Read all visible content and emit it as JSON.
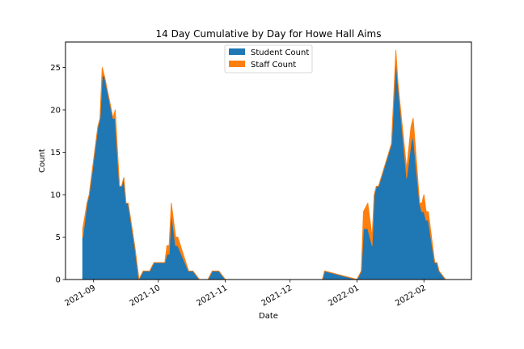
{
  "chart_data": {
    "type": "area",
    "stacked": true,
    "title": "14 Day Cumulative by Day for Howe Hall Aims",
    "xlabel": "Date",
    "ylabel": "Count",
    "x_axis": {
      "type": "date",
      "range": [
        "2021-08-19",
        "2022-02-23"
      ],
      "ticks": [
        {
          "label": "2021-09",
          "date": "2021-09-01"
        },
        {
          "label": "2021-10",
          "date": "2021-10-01"
        },
        {
          "label": "2021-11",
          "date": "2021-11-01"
        },
        {
          "label": "2021-12",
          "date": "2021-12-01"
        },
        {
          "label": "2022-01",
          "date": "2022-01-01"
        },
        {
          "label": "2022-02",
          "date": "2022-02-01"
        }
      ]
    },
    "y_axis": {
      "range": [
        0,
        28
      ],
      "ticks": [
        0,
        5,
        10,
        15,
        20,
        25
      ]
    },
    "grid": false,
    "legend": {
      "position": "upper center"
    },
    "series": [
      {
        "name": "Student Count",
        "color": "#1f77b4",
        "points": [
          [
            "2021-08-27",
            5
          ],
          [
            "2021-08-29",
            9
          ],
          [
            "2021-08-30",
            10
          ],
          [
            "2021-09-01",
            14
          ],
          [
            "2021-09-03",
            18
          ],
          [
            "2021-09-04",
            19
          ],
          [
            "2021-09-05",
            24
          ],
          [
            "2021-09-06",
            24
          ],
          [
            "2021-09-10",
            19
          ],
          [
            "2021-09-11",
            19
          ],
          [
            "2021-09-13",
            11
          ],
          [
            "2021-09-14",
            11
          ],
          [
            "2021-09-15",
            12
          ],
          [
            "2021-09-16",
            9
          ],
          [
            "2021-09-17",
            9
          ],
          [
            "2021-09-20",
            4
          ],
          [
            "2021-09-22",
            0
          ],
          [
            "2021-09-24",
            1
          ],
          [
            "2021-09-27",
            1
          ],
          [
            "2021-09-29",
            2
          ],
          [
            "2021-10-04",
            2
          ],
          [
            "2021-10-05",
            3
          ],
          [
            "2021-10-06",
            3
          ],
          [
            "2021-10-07",
            8
          ],
          [
            "2021-10-09",
            4
          ],
          [
            "2021-10-10",
            4
          ],
          [
            "2021-10-15",
            1
          ],
          [
            "2021-10-17",
            1
          ],
          [
            "2021-10-20",
            0
          ],
          [
            "2021-10-24",
            0
          ],
          [
            "2021-10-26",
            1
          ],
          [
            "2021-10-29",
            1
          ],
          [
            "2021-11-01",
            0
          ],
          [
            "2021-12-16",
            0
          ],
          [
            "2021-12-17",
            1
          ],
          [
            "2022-01-01",
            0
          ],
          [
            "2022-01-03",
            1
          ],
          [
            "2022-01-04",
            6
          ],
          [
            "2022-01-06",
            6
          ],
          [
            "2022-01-08",
            4
          ],
          [
            "2022-01-09",
            10
          ],
          [
            "2022-01-10",
            11
          ],
          [
            "2022-01-11",
            11
          ],
          [
            "2022-01-17",
            16
          ],
          [
            "2022-01-19",
            26
          ],
          [
            "2022-01-20",
            23
          ],
          [
            "2022-01-24",
            12
          ],
          [
            "2022-01-26",
            16
          ],
          [
            "2022-01-27",
            17
          ],
          [
            "2022-01-30",
            9
          ],
          [
            "2022-01-31",
            8
          ],
          [
            "2022-02-01",
            8
          ],
          [
            "2022-02-02",
            7
          ],
          [
            "2022-02-03",
            7
          ],
          [
            "2022-02-06",
            2
          ],
          [
            "2022-02-07",
            2
          ],
          [
            "2022-02-08",
            1
          ],
          [
            "2022-02-11",
            0
          ],
          [
            "2022-02-16",
            0
          ]
        ]
      },
      {
        "name": "Staff Count",
        "color": "#ff7f0e",
        "points": [
          [
            "2021-08-27",
            1
          ],
          [
            "2021-08-29",
            0
          ],
          [
            "2021-08-30",
            0
          ],
          [
            "2021-09-01",
            0
          ],
          [
            "2021-09-03",
            0
          ],
          [
            "2021-09-04",
            0
          ],
          [
            "2021-09-05",
            1
          ],
          [
            "2021-09-06",
            0
          ],
          [
            "2021-09-10",
            0
          ],
          [
            "2021-09-11",
            1
          ],
          [
            "2021-09-13",
            0
          ],
          [
            "2021-09-14",
            0
          ],
          [
            "2021-09-15",
            0
          ],
          [
            "2021-09-16",
            0
          ],
          [
            "2021-09-17",
            0
          ],
          [
            "2021-09-20",
            0
          ],
          [
            "2021-09-22",
            0
          ],
          [
            "2021-09-24",
            0
          ],
          [
            "2021-09-27",
            0
          ],
          [
            "2021-09-29",
            0
          ],
          [
            "2021-10-04",
            0
          ],
          [
            "2021-10-05",
            1
          ],
          [
            "2021-10-06",
            1
          ],
          [
            "2021-10-07",
            1
          ],
          [
            "2021-10-09",
            1
          ],
          [
            "2021-10-10",
            1
          ],
          [
            "2021-10-15",
            0
          ],
          [
            "2021-10-17",
            0
          ],
          [
            "2021-10-20",
            0
          ],
          [
            "2021-10-24",
            0
          ],
          [
            "2021-10-26",
            0
          ],
          [
            "2021-10-29",
            0
          ],
          [
            "2021-11-01",
            0
          ],
          [
            "2021-12-16",
            0
          ],
          [
            "2021-12-17",
            0
          ],
          [
            "2022-01-01",
            0
          ],
          [
            "2022-01-03",
            0
          ],
          [
            "2022-01-04",
            2
          ],
          [
            "2022-01-06",
            3
          ],
          [
            "2022-01-08",
            1
          ],
          [
            "2022-01-09",
            0
          ],
          [
            "2022-01-10",
            0
          ],
          [
            "2022-01-11",
            0
          ],
          [
            "2022-01-17",
            0
          ],
          [
            "2022-01-19",
            1
          ],
          [
            "2022-01-20",
            0
          ],
          [
            "2022-01-24",
            1
          ],
          [
            "2022-01-26",
            2
          ],
          [
            "2022-01-27",
            2
          ],
          [
            "2022-01-30",
            0
          ],
          [
            "2022-01-31",
            1
          ],
          [
            "2022-02-01",
            2
          ],
          [
            "2022-02-02",
            1
          ],
          [
            "2022-02-03",
            1
          ],
          [
            "2022-02-06",
            0
          ],
          [
            "2022-02-07",
            0
          ],
          [
            "2022-02-08",
            0
          ],
          [
            "2022-02-11",
            0
          ],
          [
            "2022-02-16",
            0
          ]
        ]
      }
    ]
  }
}
